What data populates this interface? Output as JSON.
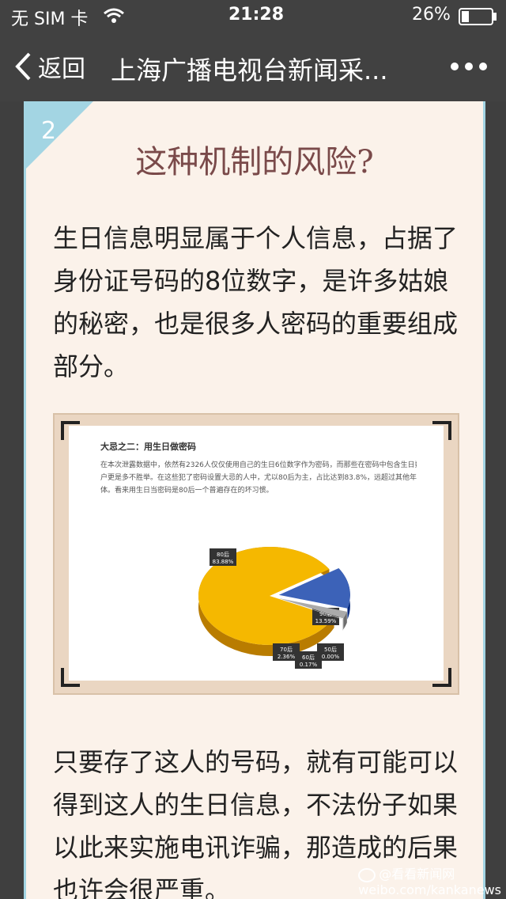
{
  "status_bar": {
    "carrier": "无 SIM 卡",
    "time": "21:28",
    "battery": "26%",
    "battery_level": 0.26
  },
  "nav": {
    "back_label": "返回",
    "title": "上海广播电视台新闻采..."
  },
  "article": {
    "section_number": "2",
    "heading": "这种机制的风险?",
    "paragraph1_lines": [
      "生日信息明显属于个人信息，占据了",
      "身份证号码的8位数字，是许多姑娘",
      "的秘密，也是很多人密码的重要组成",
      "部分。"
    ],
    "paragraph2_lines": [
      "只要存了这人的号码，就有可能可以",
      "得到这人的生日信息，不法份子如果",
      "以此来实施电讯诈骗，那造成的后果",
      "也许会很严重。"
    ]
  },
  "chart_image": {
    "title": "大忌之二：用生日做密码",
    "text_lines": [
      "在本次泄露数据中，依然有2326人仅仅使用自己的生日6位数字作为密码，而那些在密码中包含生日数字的",
      "户更是多不胜举。在这些犯了密码设置大忌的人中，尤以80后为主，占比达到83.8%，远超过其他年龄段的群",
      "体。看来用生日当密码是80后一个普遍存在的坏习惯。"
    ]
  },
  "chart_data": {
    "type": "pie",
    "title": "大忌之二：用生日做密码",
    "slices": [
      {
        "label": "80后",
        "value_label": "83.88%",
        "value": 83.88,
        "color": "#f5b800"
      },
      {
        "label": "90后",
        "value_label": "13.59%",
        "value": 13.59,
        "color": "#3c62b8"
      },
      {
        "label": "70后",
        "value_label": "2.36%",
        "value": 2.36,
        "color": "#aaaaaa"
      },
      {
        "label": "60后",
        "value_label": "0.17%",
        "value": 0.17,
        "color": "#dddddd"
      },
      {
        "label": "50后",
        "value_label": "0.00%",
        "value": 0.0,
        "color": "#dddddd"
      }
    ]
  },
  "watermark": {
    "text": "@看看新闻网",
    "url_text": "weibo.com/kankanews"
  }
}
